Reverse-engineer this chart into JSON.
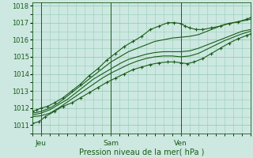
{
  "xlabel": "Pression niveau de la mer( hPa )",
  "background_color": "#cce8e0",
  "grid_color": "#99ccbb",
  "line_color": "#1a5c1a",
  "ylim": [
    1010.5,
    1018.2
  ],
  "xlim": [
    0,
    100
  ],
  "yticks": [
    1011,
    1012,
    1013,
    1014,
    1015,
    1016,
    1017,
    1018
  ],
  "xtick_positions": [
    4,
    36,
    68
  ],
  "xtick_labels": [
    "Jeu",
    "Sam",
    "Ven"
  ],
  "vline_positions": [
    4,
    36,
    68
  ],
  "series": [
    {
      "x": [
        0,
        2,
        4,
        7,
        10,
        14,
        18,
        22,
        26,
        30,
        34,
        38,
        42,
        46,
        50,
        54,
        58,
        62,
        65,
        68,
        70,
        72,
        75,
        78,
        82,
        86,
        90,
        94,
        98,
        100
      ],
      "y": [
        1011.8,
        1011.9,
        1012.0,
        1012.1,
        1012.3,
        1012.6,
        1013.0,
        1013.4,
        1013.9,
        1014.3,
        1014.8,
        1015.2,
        1015.6,
        1015.9,
        1016.2,
        1016.6,
        1016.8,
        1017.0,
        1017.0,
        1016.95,
        1016.8,
        1016.7,
        1016.6,
        1016.6,
        1016.7,
        1016.8,
        1016.95,
        1017.05,
        1017.2,
        1017.3
      ],
      "style": "marker"
    },
    {
      "x": [
        0,
        4,
        8,
        12,
        16,
        20,
        24,
        28,
        32,
        36,
        40,
        44,
        48,
        52,
        56,
        60,
        64,
        68,
        72,
        76,
        80,
        84,
        88,
        92,
        96,
        100
      ],
      "y": [
        1011.7,
        1011.8,
        1012.0,
        1012.3,
        1012.7,
        1013.1,
        1013.5,
        1013.9,
        1014.3,
        1014.7,
        1015.0,
        1015.3,
        1015.5,
        1015.7,
        1015.9,
        1016.0,
        1016.1,
        1016.15,
        1016.2,
        1016.3,
        1016.5,
        1016.7,
        1016.9,
        1017.0,
        1017.1,
        1017.2
      ],
      "style": "plain"
    },
    {
      "x": [
        0,
        4,
        8,
        12,
        16,
        20,
        24,
        28,
        32,
        36,
        40,
        44,
        48,
        52,
        56,
        60,
        64,
        68,
        72,
        76,
        80,
        84,
        88,
        92,
        96,
        100
      ],
      "y": [
        1011.6,
        1011.7,
        1011.9,
        1012.2,
        1012.5,
        1012.9,
        1013.3,
        1013.7,
        1014.0,
        1014.3,
        1014.6,
        1014.85,
        1015.0,
        1015.15,
        1015.25,
        1015.3,
        1015.3,
        1015.3,
        1015.35,
        1015.5,
        1015.7,
        1015.9,
        1016.1,
        1016.3,
        1016.5,
        1016.6
      ],
      "style": "plain"
    },
    {
      "x": [
        0,
        4,
        8,
        12,
        16,
        20,
        24,
        28,
        32,
        36,
        40,
        44,
        48,
        52,
        56,
        60,
        64,
        68,
        72,
        76,
        80,
        84,
        88,
        92,
        96,
        100
      ],
      "y": [
        1011.5,
        1011.55,
        1011.7,
        1012.0,
        1012.35,
        1012.7,
        1013.05,
        1013.4,
        1013.75,
        1014.05,
        1014.3,
        1014.55,
        1014.75,
        1014.9,
        1015.0,
        1015.05,
        1015.05,
        1015.0,
        1015.05,
        1015.2,
        1015.45,
        1015.7,
        1015.95,
        1016.15,
        1016.35,
        1016.5
      ],
      "style": "plain"
    },
    {
      "x": [
        0,
        3,
        6,
        10,
        14,
        18,
        22,
        26,
        30,
        34,
        38,
        42,
        46,
        50,
        54,
        58,
        62,
        65,
        68,
        71,
        74,
        78,
        82,
        86,
        90,
        94,
        98,
        100
      ],
      "y": [
        1011.1,
        1011.2,
        1011.5,
        1011.8,
        1012.1,
        1012.3,
        1012.6,
        1012.9,
        1013.2,
        1013.5,
        1013.75,
        1014.0,
        1014.25,
        1014.4,
        1014.55,
        1014.65,
        1014.7,
        1014.7,
        1014.65,
        1014.6,
        1014.7,
        1014.9,
        1015.2,
        1015.5,
        1015.8,
        1016.05,
        1016.25,
        1016.35
      ],
      "style": "marker"
    }
  ]
}
